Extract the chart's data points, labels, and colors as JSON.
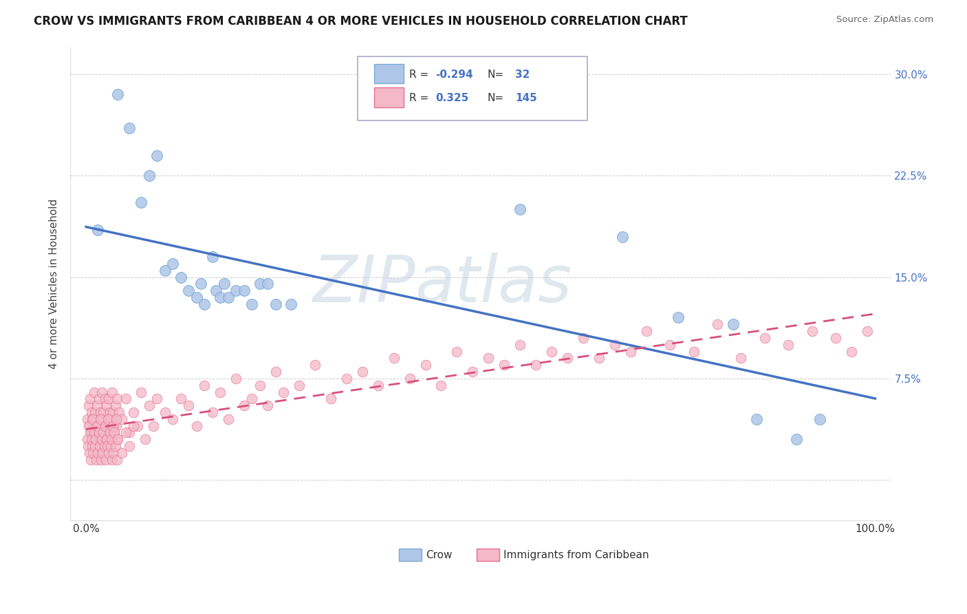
{
  "title": "CROW VS IMMIGRANTS FROM CARIBBEAN 4 OR MORE VEHICLES IN HOUSEHOLD CORRELATION CHART",
  "source": "Source: ZipAtlas.com",
  "ylabel": "4 or more Vehicles in Household",
  "crow_color": "#aec6e8",
  "crow_edge": "#7aaad4",
  "carib_color": "#f4b8c8",
  "carib_edge": "#e07090",
  "trend_blue": "#4472c4",
  "trend_pink": "#d94f7a",
  "crow_x": [
    1.5,
    4.0,
    5.5,
    7.0,
    8.0,
    9.0,
    10.0,
    11.0,
    12.0,
    13.0,
    14.0,
    14.5,
    15.0,
    16.0,
    16.5,
    17.0,
    17.5,
    18.0,
    19.0,
    20.0,
    21.0,
    22.0,
    23.0,
    24.0,
    26.0,
    55.0,
    68.0,
    75.0,
    82.0,
    85.0,
    90.0,
    93.0
  ],
  "crow_y": [
    18.5,
    28.5,
    26.0,
    20.5,
    22.5,
    24.0,
    15.5,
    16.0,
    15.0,
    14.0,
    13.5,
    14.5,
    13.0,
    16.5,
    14.0,
    13.5,
    14.5,
    13.5,
    14.0,
    14.0,
    13.0,
    14.5,
    14.5,
    13.0,
    13.0,
    20.0,
    18.0,
    12.0,
    11.5,
    4.5,
    3.0,
    4.5
  ],
  "carib_x": [
    0.2,
    0.3,
    0.4,
    0.5,
    0.6,
    0.7,
    0.8,
    0.9,
    1.0,
    1.1,
    1.2,
    1.3,
    1.4,
    1.5,
    1.6,
    1.7,
    1.8,
    1.9,
    2.0,
    2.1,
    2.2,
    2.3,
    2.4,
    2.5,
    2.6,
    2.7,
    2.8,
    2.9,
    3.0,
    3.1,
    3.2,
    3.3,
    3.4,
    3.5,
    3.6,
    3.7,
    3.8,
    3.9,
    4.0,
    4.2,
    4.5,
    5.0,
    5.5,
    6.0,
    6.5,
    7.0,
    7.5,
    8.0,
    8.5,
    9.0,
    10.0,
    11.0,
    12.0,
    13.0,
    14.0,
    15.0,
    16.0,
    17.0,
    18.0,
    19.0,
    20.0,
    21.0,
    22.0,
    23.0,
    24.0,
    25.0,
    27.0,
    29.0,
    31.0,
    33.0,
    35.0,
    37.0,
    39.0,
    41.0,
    43.0,
    45.0,
    47.0,
    49.0,
    51.0,
    53.0,
    55.0,
    57.0,
    59.0,
    61.0,
    63.0,
    65.0,
    67.0,
    69.0,
    71.0,
    74.0,
    77.0,
    80.0,
    83.0,
    86.0,
    89.0,
    92.0,
    95.0,
    97.0,
    99.0
  ],
  "carib_y": [
    4.5,
    5.5,
    4.0,
    6.0,
    3.5,
    5.0,
    4.5,
    3.0,
    6.5,
    5.0,
    4.0,
    3.5,
    5.5,
    4.0,
    6.0,
    3.0,
    5.0,
    4.5,
    6.5,
    3.5,
    5.0,
    4.0,
    6.0,
    3.0,
    5.5,
    4.0,
    3.5,
    6.0,
    5.0,
    4.5,
    3.0,
    6.5,
    5.0,
    4.0,
    3.5,
    5.5,
    4.0,
    6.0,
    3.0,
    5.0,
    4.5,
    6.0,
    3.5,
    5.0,
    4.0,
    6.5,
    3.0,
    5.5,
    4.0,
    6.0,
    5.0,
    4.5,
    6.0,
    5.5,
    4.0,
    7.0,
    5.0,
    6.5,
    4.5,
    7.5,
    5.5,
    6.0,
    7.0,
    5.5,
    8.0,
    6.5,
    7.0,
    8.5,
    6.0,
    7.5,
    8.0,
    7.0,
    9.0,
    7.5,
    8.5,
    7.0,
    9.5,
    8.0,
    9.0,
    8.5,
    10.0,
    8.5,
    9.5,
    9.0,
    10.5,
    9.0,
    10.0,
    9.5,
    11.0,
    10.0,
    9.5,
    11.5,
    9.0,
    10.5,
    10.0,
    11.0,
    10.5,
    9.5,
    11.0
  ],
  "extra_carib_x": [
    0.15,
    0.25,
    0.35,
    0.45,
    0.5,
    0.6,
    0.7,
    0.8,
    0.85,
    0.9,
    1.0,
    1.1,
    1.2,
    1.3,
    1.4,
    1.5,
    1.6,
    1.7,
    1.8,
    1.9,
    2.0,
    2.1,
    2.2,
    2.3,
    2.4,
    2.5,
    2.6,
    2.7,
    2.8,
    2.9,
    3.0,
    3.1,
    3.2,
    3.3,
    3.4,
    3.5,
    3.6,
    3.7,
    3.8,
    3.9,
    4.0,
    4.5,
    5.0,
    5.5,
    6.0
  ],
  "extra_carib_y": [
    3.0,
    2.5,
    4.0,
    2.0,
    3.5,
    1.5,
    3.0,
    2.5,
    4.5,
    2.0,
    3.5,
    2.5,
    3.0,
    1.5,
    4.0,
    2.0,
    3.5,
    2.5,
    4.5,
    1.5,
    3.0,
    2.0,
    3.5,
    2.5,
    4.0,
    1.5,
    3.0,
    2.5,
    4.5,
    2.0,
    3.5,
    2.5,
    3.0,
    1.5,
    4.0,
    2.0,
    3.5,
    2.5,
    4.5,
    1.5,
    3.0,
    2.0,
    3.5,
    2.5,
    4.0
  ]
}
